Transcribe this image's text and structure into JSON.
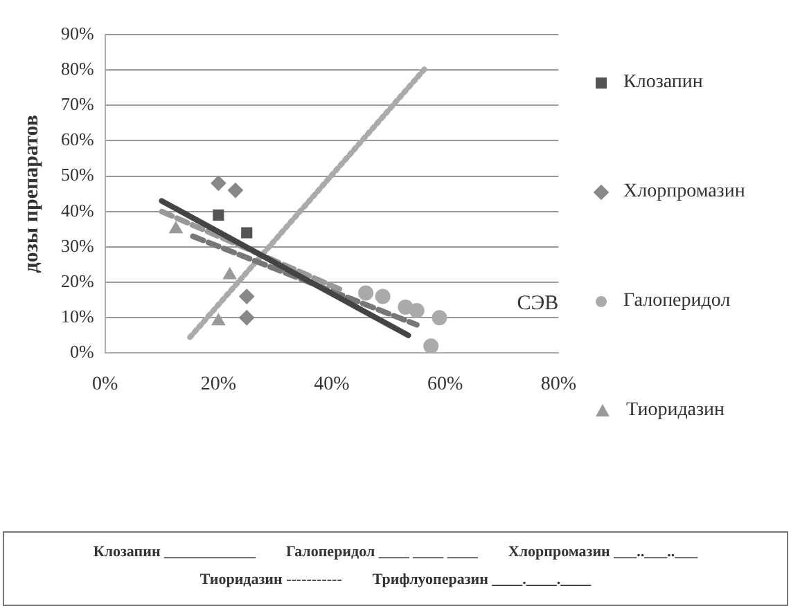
{
  "chart_data": {
    "type": "scatter",
    "ylabel": "дозы препаратов",
    "xlim": [
      0,
      80
    ],
    "xticks": [
      {
        "value": 0,
        "label": "0%"
      },
      {
        "value": 20,
        "label": "20%"
      },
      {
        "value": 40,
        "label": "40%"
      },
      {
        "value": 60,
        "label": "60%"
      },
      {
        "value": 80,
        "label": "80%"
      }
    ],
    "ylim": [
      0,
      90
    ],
    "yticks": [
      {
        "value": 0,
        "label": "0%"
      },
      {
        "value": 10,
        "label": "10%"
      },
      {
        "value": 20,
        "label": "20%"
      },
      {
        "value": 30,
        "label": "30%"
      },
      {
        "value": 40,
        "label": "40%"
      },
      {
        "value": 50,
        "label": "50%"
      },
      {
        "value": 60,
        "label": "60%"
      },
      {
        "value": 70,
        "label": "70%"
      },
      {
        "value": 80,
        "label": "80%"
      },
      {
        "value": 90,
        "label": "90%"
      }
    ],
    "grid": "y",
    "legend": "right",
    "series": [
      {
        "name": "Клозапин",
        "color": "#555555",
        "marker": "square",
        "x": [
          20,
          25
        ],
        "values": [
          39,
          34
        ]
      },
      {
        "name": "Хлорпромазин",
        "color": "#888888",
        "marker": "diamond",
        "x": [
          20,
          23,
          25,
          25
        ],
        "values": [
          48,
          46,
          10,
          16
        ]
      },
      {
        "name": "Галоперидол",
        "color": "#aaaaaa",
        "marker": "circle",
        "x": [
          46,
          49,
          53,
          55,
          59,
          57.5
        ],
        "values": [
          17,
          16,
          13,
          12,
          10,
          2
        ]
      },
      {
        "name": "Тиоридазин",
        "color": "#999999",
        "marker": "triangle",
        "x": [
          20,
          22,
          12.5
        ],
        "values": [
          9,
          22,
          35
        ]
      },
      {
        "type": "line",
        "color": "#444444",
        "line_style": "solid",
        "x": [
          10,
          53.5
        ],
        "values": [
          43,
          5
        ]
      },
      {
        "type": "line",
        "color": "#999999",
        "line_style": "dashed",
        "x": [
          10,
          41.5
        ],
        "values": [
          40,
          18
        ]
      },
      {
        "type": "line",
        "color": "#777777",
        "line_style": "dashed",
        "x": [
          15.5,
          55
        ],
        "values": [
          33,
          8
        ]
      },
      {
        "type": "line",
        "color": "#aaaaaa",
        "line_style": "dotted",
        "x": [
          15,
          56.5
        ],
        "values": [
          4.5,
          80.5
        ]
      }
    ],
    "annotations": [
      "СЭВ",
      "Клозапин ____________",
      "Галоперидол ____ ____ ____",
      "Хлорпромазин ___..___..___",
      "Тиоридазин -----------",
      "Трифлуоперазин ____.____.____"
    ]
  }
}
